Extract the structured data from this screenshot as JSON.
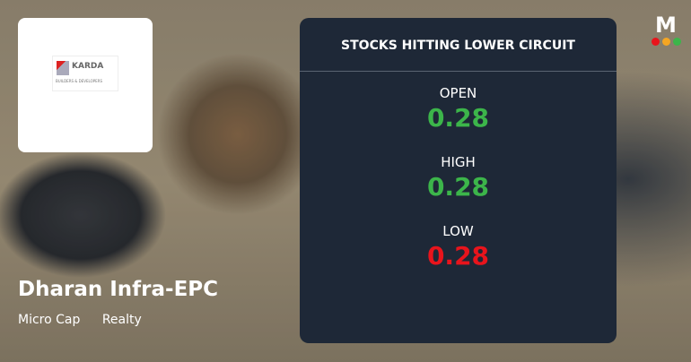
{
  "company": {
    "name": "Dharan Infra-EPC",
    "tags": [
      "Micro Cap",
      "Realty"
    ],
    "logo_text": "KARDA",
    "logo_subtext": "BUILDERS & DEVELOPERS"
  },
  "panel": {
    "title": "STOCKS HITTING LOWER CIRCUIT",
    "rows": [
      {
        "label": "OPEN",
        "value": "0.28",
        "color": "#3cb54a"
      },
      {
        "label": "HIGH",
        "value": "0.28",
        "color": "#3cb54a"
      },
      {
        "label": "LOW",
        "value": "0.28",
        "color": "#e8141c"
      }
    ]
  },
  "brand": {
    "letter": "M",
    "dot_colors": [
      "#e8141c",
      "#f5a623",
      "#3cb54a"
    ]
  }
}
